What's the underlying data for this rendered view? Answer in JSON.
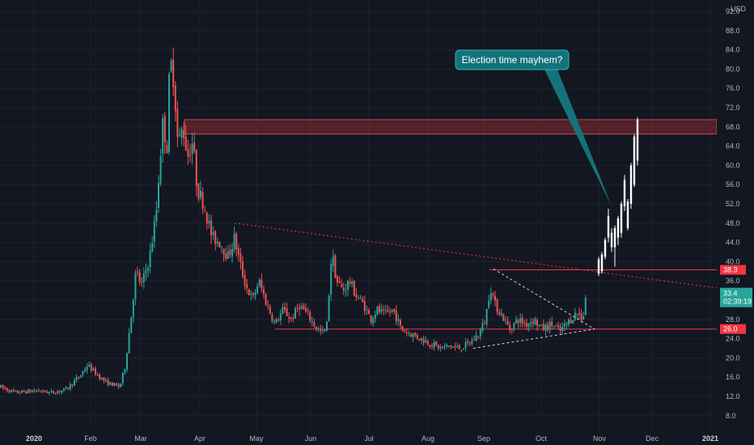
{
  "chart_data": {
    "type": "candlestick",
    "currency": "USD",
    "y_ticks": [
      8.0,
      12.0,
      16.0,
      20.0,
      24.0,
      28.0,
      32.0,
      36.0,
      40.0,
      44.0,
      48.0,
      52.0,
      56.0,
      60.0,
      64.0,
      68.0,
      72.0,
      76.0,
      80.0,
      84.0,
      88.0,
      92.0
    ],
    "ylim": [
      5.5,
      93.5
    ],
    "x_labels": [
      {
        "label": "2020",
        "bold": true
      },
      {
        "label": "Feb"
      },
      {
        "label": "Mar"
      },
      {
        "label": "Apr"
      },
      {
        "label": "May"
      },
      {
        "label": "Jun"
      },
      {
        "label": "Jul"
      },
      {
        "label": "Aug"
      },
      {
        "label": "Sep"
      },
      {
        "label": "Oct"
      },
      {
        "label": "Nov"
      },
      {
        "label": "Dec"
      },
      {
        "label": "2021",
        "bold": true
      }
    ],
    "price_segments": [
      [
        0,
        14.0
      ],
      [
        18,
        12.8
      ],
      [
        45,
        13.2
      ],
      [
        65,
        12.8
      ],
      [
        82,
        13.5
      ],
      [
        100,
        16.5
      ],
      [
        108,
        18.5
      ],
      [
        130,
        15.0
      ],
      [
        148,
        14.0
      ],
      [
        155,
        18.5
      ],
      [
        158,
        23.0
      ],
      [
        163,
        30.0
      ],
      [
        168,
        38.0
      ],
      [
        175,
        35.0
      ],
      [
        185,
        41.0
      ],
      [
        193,
        50.0
      ],
      [
        198,
        62.0
      ],
      [
        202,
        70.0
      ],
      [
        206,
        62.0
      ],
      [
        210,
        82.0
      ],
      [
        215,
        78.0
      ],
      [
        220,
        64.0
      ],
      [
        226,
        68.0
      ],
      [
        232,
        62.0
      ],
      [
        238,
        65.0
      ],
      [
        244,
        55.0
      ],
      [
        252,
        52.0
      ],
      [
        262,
        45.0
      ],
      [
        272,
        44.0
      ],
      [
        282,
        41.0
      ],
      [
        290,
        45.0
      ],
      [
        296,
        40.0
      ],
      [
        304,
        35.0
      ],
      [
        312,
        32.0
      ],
      [
        320,
        36.0
      ],
      [
        330,
        31.0
      ],
      [
        340,
        27.0
      ],
      [
        350,
        30.0
      ],
      [
        360,
        28.0
      ],
      [
        370,
        31.0
      ],
      [
        380,
        29.0
      ],
      [
        392,
        26.0
      ],
      [
        400,
        25.0
      ],
      [
        404,
        27.0
      ],
      [
        410,
        42.0
      ],
      [
        416,
        36.0
      ],
      [
        424,
        34.0
      ],
      [
        432,
        36.0
      ],
      [
        440,
        33.0
      ],
      [
        450,
        31.0
      ],
      [
        458,
        28.0
      ],
      [
        466,
        30.0
      ],
      [
        476,
        29.0
      ],
      [
        486,
        30.0
      ],
      [
        496,
        26.0
      ],
      [
        508,
        25.0
      ],
      [
        520,
        24.0
      ],
      [
        532,
        23.0
      ],
      [
        545,
        22.0
      ],
      [
        555,
        22.5
      ],
      [
        568,
        22.0
      ],
      [
        580,
        23.0
      ],
      [
        592,
        25.0
      ],
      [
        600,
        28.0
      ],
      [
        606,
        35.0
      ],
      [
        612,
        31.0
      ],
      [
        620,
        29.0
      ],
      [
        630,
        26.0
      ],
      [
        640,
        28.0
      ],
      [
        650,
        27.0
      ],
      [
        660,
        28.0
      ],
      [
        670,
        26.0
      ],
      [
        682,
        27.0
      ],
      [
        692,
        25.5
      ],
      [
        700,
        27.0
      ],
      [
        708,
        28.5
      ],
      [
        714,
        29.5
      ],
      [
        720,
        28.0
      ],
      [
        725,
        32.5
      ]
    ],
    "election_candles": [
      [
        740,
        37.5,
        40.5,
        37.0,
        41.0
      ],
      [
        744,
        38.0,
        41.5,
        37.5,
        42.0
      ],
      [
        748,
        41.0,
        44.5,
        40.5,
        45.0
      ],
      [
        752,
        45.0,
        49.5,
        44.0,
        51.0
      ],
      [
        756,
        46.0,
        43.0,
        42.0,
        47.0
      ],
      [
        760,
        43.0,
        47.0,
        39.0,
        47.5
      ],
      [
        764,
        45.0,
        49.0,
        43.5,
        49.5
      ],
      [
        768,
        46.0,
        52.0,
        45.0,
        52.5
      ],
      [
        772,
        51.5,
        57.0,
        50.5,
        58.0
      ],
      [
        776,
        47.0,
        52.5,
        46.5,
        53.0
      ],
      [
        780,
        52.0,
        60.0,
        51.0,
        60.5
      ],
      [
        784,
        56.0,
        66.0,
        55.5,
        66.5
      ],
      [
        788,
        61.0,
        69.5,
        60.0,
        70.0
      ]
    ],
    "resistance_zone": {
      "low": 66.5,
      "high": 69.5
    },
    "horizontal_levels": [
      {
        "value": 38.3,
        "label": "38.3",
        "from_x": 605
      },
      {
        "value": 26.0,
        "label": "26.0",
        "from_x": 340
      }
    ],
    "trendlines": [
      {
        "points": [
          [
            290,
            48.0
          ],
          [
            932,
            33.5
          ]
        ],
        "color": "#f23645",
        "dash": "2,3"
      },
      {
        "points": [
          [
            610,
            38.5
          ],
          [
            735,
            26.0
          ]
        ],
        "color": "#d1d4dc",
        "dash": "3,3"
      },
      {
        "points": [
          [
            585,
            22.0
          ],
          [
            735,
            26.0
          ]
        ],
        "color": "#d1d4dc",
        "dash": "3,3"
      }
    ],
    "current_price": {
      "value": "33.4",
      "countdown": "02:39:19",
      "y": 33.4
    },
    "annotation": {
      "text": "Election time mayhem?",
      "target_x": 756,
      "target_y": 51.5
    },
    "colors": {
      "up": "#26a69a",
      "down": "#ef5350",
      "election": "#ffffff",
      "background": "#131722",
      "grid": "#1e222d",
      "callout": "#14737a",
      "level": "#f23645",
      "price_badge": "#26a69a"
    }
  }
}
